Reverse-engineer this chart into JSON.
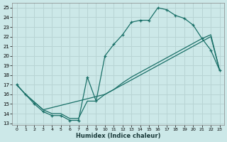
{
  "xlabel": "Humidex (Indice chaleur)",
  "bg_color": "#cce8e8",
  "grid_color": "#b8d4d4",
  "line_color": "#1a7068",
  "xlim": [
    -0.5,
    23.5
  ],
  "ylim": [
    12.8,
    25.5
  ],
  "xticks": [
    0,
    1,
    2,
    3,
    4,
    5,
    6,
    7,
    8,
    9,
    10,
    11,
    12,
    13,
    14,
    15,
    16,
    17,
    18,
    19,
    20,
    21,
    22,
    23
  ],
  "yticks": [
    13,
    14,
    15,
    16,
    17,
    18,
    19,
    20,
    21,
    22,
    23,
    24,
    25
  ],
  "curve1_x": [
    0,
    1,
    2,
    3,
    4,
    5,
    6,
    7,
    8,
    9,
    10,
    11,
    12,
    13,
    14,
    15,
    16,
    17,
    18,
    19,
    20,
    21,
    22,
    23
  ],
  "curve1_y": [
    17.0,
    16.0,
    15.0,
    14.2,
    13.8,
    13.8,
    13.3,
    13.3,
    17.8,
    15.3,
    20.0,
    21.2,
    22.2,
    23.5,
    23.7,
    23.7,
    25.0,
    24.8,
    24.2,
    23.9,
    23.2,
    21.8,
    20.6,
    18.5
  ],
  "curve2_x": [
    0,
    1,
    2,
    3,
    4,
    5,
    6,
    7,
    8,
    9,
    10,
    11,
    12,
    13,
    14,
    15,
    16,
    17,
    18,
    19,
    20,
    21,
    22,
    23
  ],
  "curve2_y": [
    17.0,
    16.0,
    15.2,
    14.4,
    14.0,
    14.0,
    13.5,
    13.5,
    15.3,
    15.3,
    16.0,
    16.5,
    17.0,
    17.5,
    18.0,
    18.5,
    19.0,
    19.5,
    20.0,
    20.5,
    21.0,
    21.5,
    22.0,
    18.5
  ],
  "curve3_x": [
    0,
    1,
    2,
    3,
    10,
    11,
    12,
    13,
    14,
    15,
    16,
    17,
    18,
    19,
    20,
    21,
    22,
    23
  ],
  "curve3_y": [
    17.0,
    16.0,
    15.2,
    14.4,
    16.0,
    16.5,
    17.2,
    17.8,
    18.3,
    18.8,
    19.3,
    19.8,
    20.3,
    20.8,
    21.3,
    21.8,
    22.2,
    18.5
  ]
}
